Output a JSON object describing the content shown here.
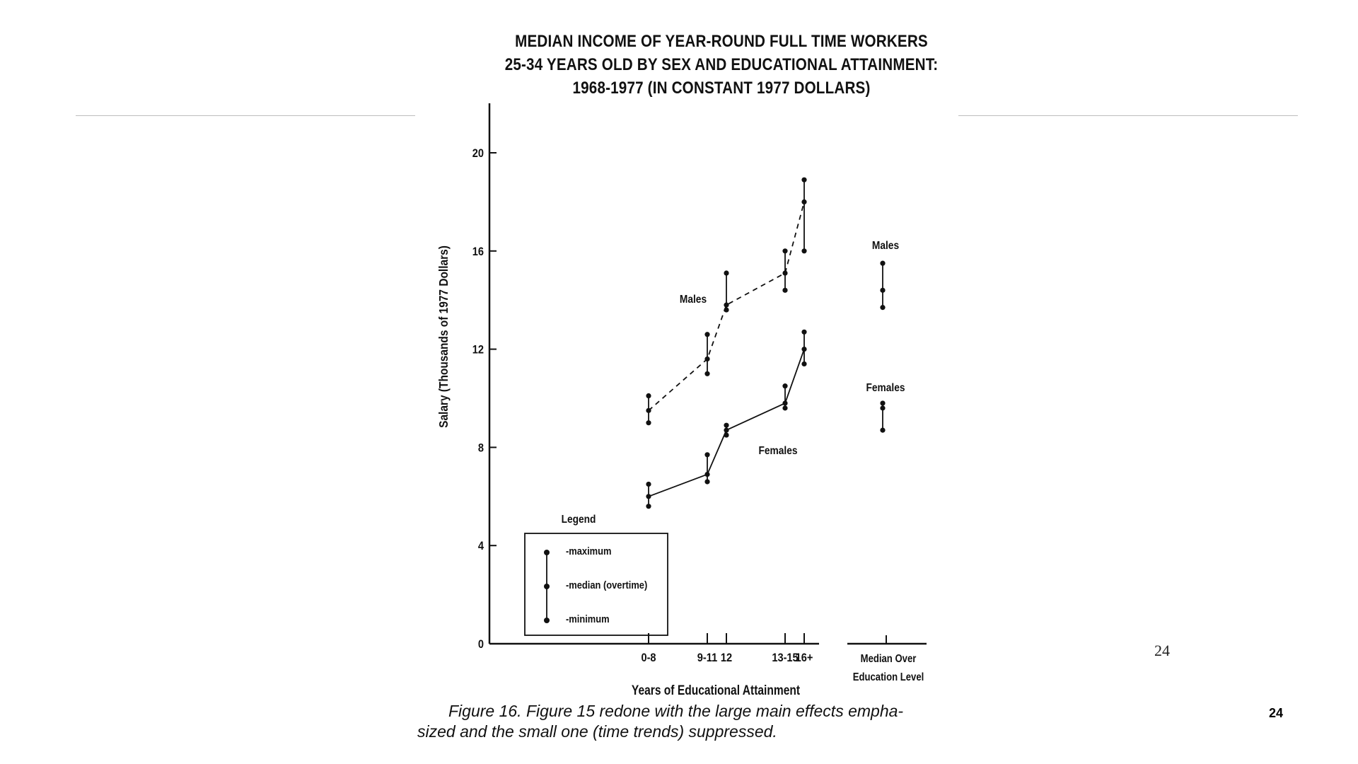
{
  "chart_data": {
    "type": "line",
    "title_lines": [
      "MEDIAN INCOME OF YEAR-ROUND FULL TIME WORKERS",
      "25-34 YEARS OLD BY SEX AND EDUCATIONAL ATTAINMENT:",
      "1968-1977 (IN CONSTANT 1977 DOLLARS)"
    ],
    "xlabel": "Years of Educational Attainment",
    "ylabel": "Salary (Thousands of 1977 Dollars)",
    "ylim": [
      0,
      20
    ],
    "yticks": [
      0,
      4,
      8,
      12,
      16,
      20
    ],
    "categories": [
      "0-8",
      "9-11",
      "12",
      "13-15",
      "16+"
    ],
    "series": [
      {
        "name": "Males",
        "line_style": "dashed",
        "min": [
          9.0,
          11.0,
          13.6,
          14.4,
          16.0
        ],
        "median": [
          9.5,
          11.6,
          13.8,
          15.1,
          18.0
        ],
        "max": [
          10.1,
          12.6,
          15.1,
          16.0,
          18.9
        ]
      },
      {
        "name": "Females",
        "line_style": "solid",
        "min": [
          5.6,
          6.6,
          8.5,
          9.6,
          11.4
        ],
        "median": [
          6.0,
          6.9,
          8.7,
          9.8,
          12.0
        ],
        "max": [
          6.5,
          7.7,
          8.9,
          10.5,
          12.7
        ]
      }
    ],
    "overall": {
      "label_lines": [
        "Median Over",
        "Education Level"
      ],
      "Males": {
        "min": 13.7,
        "median": 14.4,
        "max": 15.5
      },
      "Females": {
        "min": 8.7,
        "median": 9.6,
        "max": 9.8
      }
    },
    "legend": {
      "title": "Legend",
      "items": [
        "-maximum",
        "-median (overtime)",
        "-minimum"
      ]
    }
  },
  "caption_lines": [
    "Figure 16. Figure 15 redone with the large main effects empha-",
    "sized and the small one (time trends) suppressed."
  ],
  "slide_number": "24",
  "page_number": "24"
}
